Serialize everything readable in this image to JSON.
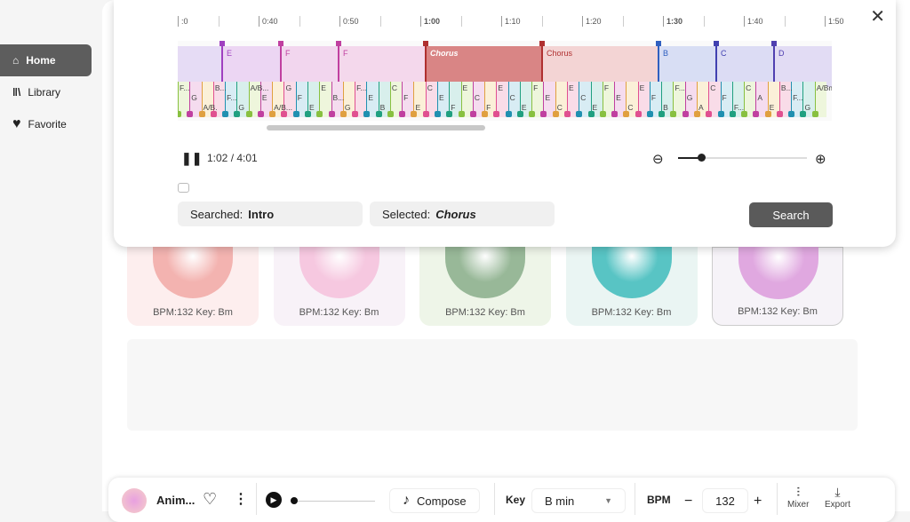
{
  "sidebar": {
    "items": [
      {
        "label": "Home",
        "icon": "home-icon"
      },
      {
        "label": "Library",
        "icon": "library-icon"
      },
      {
        "label": "Favorite",
        "icon": "heart-icon"
      }
    ]
  },
  "timeline": {
    "ticks": [
      ":0",
      "",
      "0:40",
      "",
      "0:50",
      "",
      "1:00",
      "",
      "1:10",
      "",
      "1:20",
      "",
      "1:30",
      "",
      "1:40",
      "",
      "1:50"
    ],
    "sections": [
      {
        "label": "",
        "color": "#b49be0",
        "bg": "#e6dcf5"
      },
      {
        "label": "E",
        "color": "#a040c0",
        "bg": "#ecd6f3"
      },
      {
        "label": "F",
        "color": "#c040a0",
        "bg": "#f2d6ee"
      },
      {
        "label": "F",
        "color": "#c040a0",
        "bg": "#f4d8ec"
      },
      {
        "label": "Chorus",
        "color": "#b03030",
        "bg": "#d98585",
        "selected": true
      },
      {
        "label": "Chorus",
        "color": "#b03030",
        "bg": "#f3d4d4"
      },
      {
        "label": "B",
        "color": "#3060c0",
        "bg": "#d8def4"
      },
      {
        "label": "C",
        "color": "#4040b0",
        "bg": "#dcdcf4"
      },
      {
        "label": "D",
        "color": "#5040b0",
        "bg": "#e2dcf4"
      }
    ],
    "chords": [
      "F...",
      "G",
      "A/B.",
      "B...",
      "F...",
      "G",
      "A/B...",
      "E",
      "A/B...",
      "G",
      "F",
      "E",
      "E",
      "B...",
      "G",
      "F...",
      "E",
      "B",
      "C",
      "F",
      "E",
      "C",
      "E",
      "F",
      "E",
      "C",
      "F",
      "E",
      "C",
      "E",
      "F",
      "E",
      "C",
      "E",
      "C",
      "E",
      "F",
      "E",
      "C",
      "E",
      "F",
      "B",
      "F...",
      "G",
      "A",
      "C",
      "F",
      "F...",
      "C",
      "A",
      "E",
      "B...",
      "F...",
      "G",
      "A/Bm"
    ]
  },
  "player": {
    "time": "1:02 / 4:01",
    "zoom_level": 0.15
  },
  "search": {
    "searched_label": "Searched:",
    "searched_value": "Intro",
    "selected_label": "Selected:",
    "selected_value": "Chorus",
    "button": "Search"
  },
  "cards": [
    {
      "label": "BPM:132 Key: Bm",
      "bg": "#fdeeee",
      "disc": "#f3b3b0"
    },
    {
      "label": "BPM:132 Key: Bm",
      "bg": "#f8f2f8",
      "disc": "#f6c8e0"
    },
    {
      "label": "BPM:132 Key: Bm",
      "bg": "#eef5e8",
      "disc": "#98b898"
    },
    {
      "label": "BPM:132 Key: Bm",
      "bg": "#eaf5f3",
      "disc": "#58c4c4"
    },
    {
      "label": "BPM:132 Key: Bm",
      "bg": "#f6f3f8",
      "disc": "#e0a8e0"
    }
  ],
  "bottom": {
    "track": "Anim...",
    "compose": "Compose",
    "key_label": "Key",
    "key_value": "B min",
    "bpm_label": "BPM",
    "bpm_value": "132",
    "mixer": "Mixer",
    "export": "Export"
  }
}
